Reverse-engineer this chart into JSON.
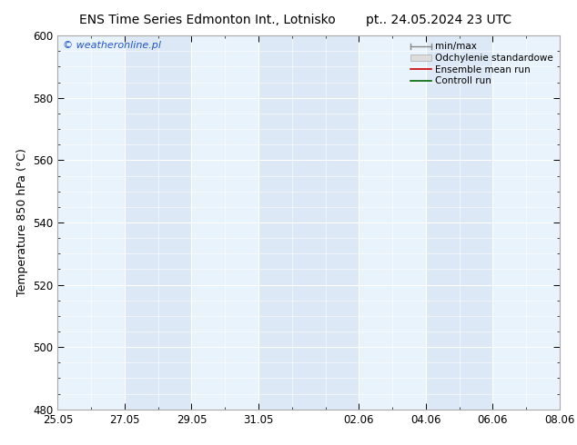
{
  "title_left": "ENS Time Series Edmonton Int., Lotnisko",
  "title_right": "pt.. 24.05.2024 23 UTC",
  "ylabel": "Temperature 850 hPa (°C)",
  "ylim": [
    480,
    600
  ],
  "yticks": [
    480,
    500,
    520,
    540,
    560,
    580,
    600
  ],
  "xtick_labels": [
    "25.05",
    "27.05",
    "29.05",
    "31.05",
    "02.06",
    "04.06",
    "06.06",
    "08.06"
  ],
  "xtick_days": [
    0,
    2,
    4,
    6,
    9,
    11,
    13,
    15
  ],
  "xlim_end_days": 15,
  "watermark": "© weatheronline.pl",
  "background_color": "#ffffff",
  "plot_bg_color": "#dce8f5",
  "shaded_band_color": "#e8f3fc",
  "shaded_bands": [
    {
      "x_start": 0,
      "x_end": 2
    },
    {
      "x_start": 4,
      "x_end": 6
    },
    {
      "x_start": 9,
      "x_end": 11
    },
    {
      "x_start": 13,
      "x_end": 15
    }
  ],
  "legend_entries": [
    {
      "label": "min/max",
      "color": "#999999",
      "type": "errorbar"
    },
    {
      "label": "Odchylenie standardowe",
      "color": "#cccccc",
      "type": "fill"
    },
    {
      "label": "Ensemble mean run",
      "color": "#cc0000",
      "type": "line"
    },
    {
      "label": "Controll run",
      "color": "#006600",
      "type": "line"
    }
  ],
  "title_fontsize": 10,
  "tick_fontsize": 8.5,
  "label_fontsize": 9,
  "legend_fontsize": 7.5,
  "grid_color": "#ffffff",
  "spine_color": "#aaaaaa"
}
